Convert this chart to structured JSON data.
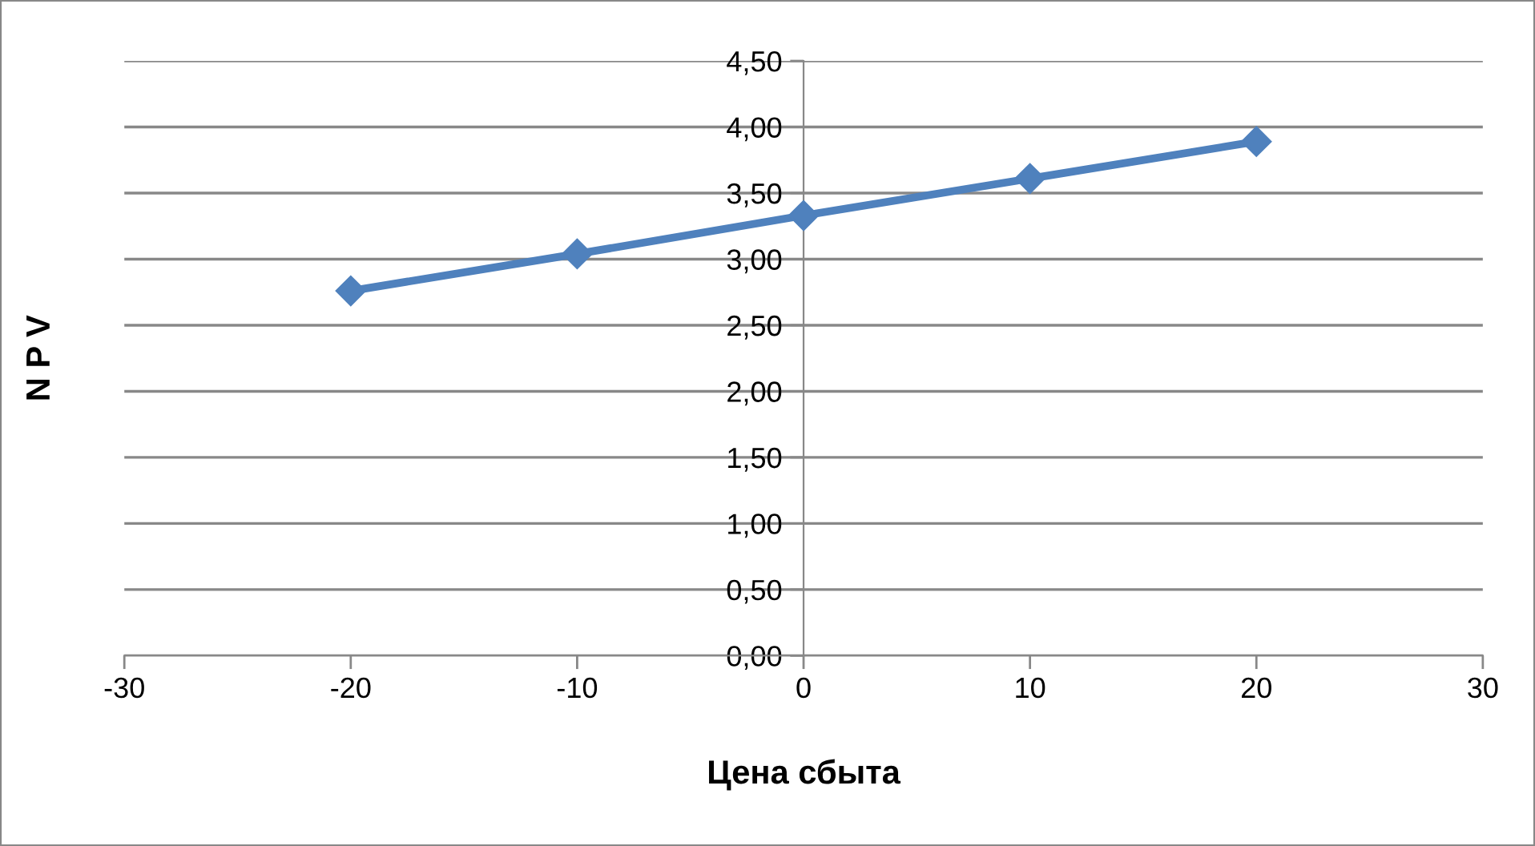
{
  "chart_data": {
    "type": "line",
    "xlabel": "Цена сбыта",
    "ylabel": "N P V",
    "x": [
      -20,
      -10,
      0,
      10,
      20
    ],
    "series": [
      {
        "color": "#4f81bd",
        "values": [
          2.76,
          3.04,
          3.33,
          3.61,
          3.89
        ]
      }
    ],
    "xlim": [
      -30,
      30
    ],
    "xticks": [
      -30,
      -20,
      -10,
      0,
      10,
      20,
      30
    ],
    "ylim": [
      0,
      4.5
    ],
    "yticks": [
      {
        "value": 0,
        "label": "0,00"
      },
      {
        "value": 0.5,
        "label": "0,50"
      },
      {
        "value": 1,
        "label": "1,00"
      },
      {
        "value": 1.5,
        "label": "1,50"
      },
      {
        "value": 2,
        "label": "2,00"
      },
      {
        "value": 2.5,
        "label": "2,50"
      },
      {
        "value": 3,
        "label": "3,00"
      },
      {
        "value": 3.5,
        "label": "3,50"
      },
      {
        "value": 4,
        "label": "4,00"
      },
      {
        "value": 4.5,
        "label": "4,50"
      }
    ],
    "grid": "y",
    "marker": "diamond",
    "line_style": "solid"
  }
}
